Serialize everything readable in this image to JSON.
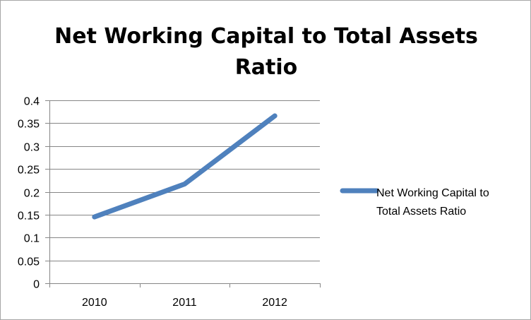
{
  "chart_data": {
    "type": "line",
    "title_lines": [
      "Net Working Capital to Total Assets",
      "Ratio"
    ],
    "categories": [
      "2010",
      "2011",
      "2012"
    ],
    "series": [
      {
        "name_lines": [
          "Net Working Capital to",
          "Total Assets Ratio"
        ],
        "values": [
          0.145,
          0.217,
          0.366
        ],
        "color": "#4f81bd"
      }
    ],
    "y_ticks": [
      "0",
      "0.05",
      "0.1",
      "0.15",
      "0.2",
      "0.25",
      "0.3",
      "0.35",
      "0.4"
    ],
    "ylim": [
      0,
      0.4
    ],
    "grid": "horizontal",
    "grid_color": "#868686",
    "legend_position": "right"
  }
}
